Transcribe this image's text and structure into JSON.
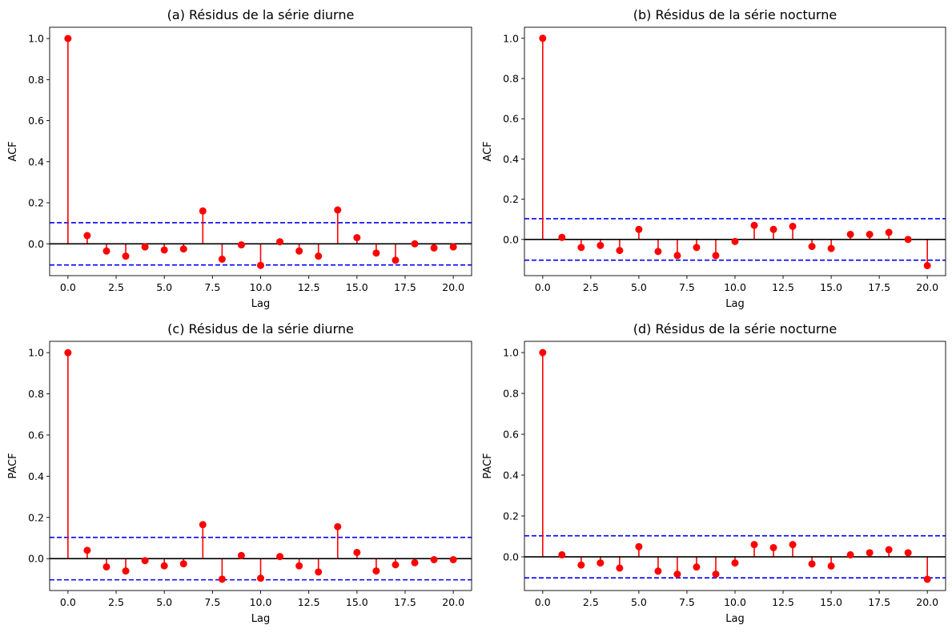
{
  "chart_data": [
    {
      "type": "stem",
      "title": "(a) Résidus de la série diurne",
      "xlabel": "Lag",
      "ylabel": "ACF",
      "x": [
        0,
        1,
        2,
        3,
        4,
        5,
        6,
        7,
        8,
        9,
        10,
        11,
        12,
        13,
        14,
        15,
        16,
        17,
        18,
        19,
        20
      ],
      "values": [
        1.0,
        0.04,
        -0.035,
        -0.06,
        -0.015,
        -0.03,
        -0.025,
        0.16,
        -0.075,
        -0.005,
        -0.105,
        0.01,
        -0.035,
        -0.06,
        0.165,
        0.03,
        -0.045,
        -0.08,
        0.0,
        -0.02,
        -0.015
      ],
      "confidence_bounds": [
        0.103,
        -0.103
      ],
      "xticks": [
        "0.0",
        "2.5",
        "5.0",
        "7.5",
        "10.0",
        "12.5",
        "15.0",
        "17.5",
        "20.0"
      ],
      "yticks": [
        "0.0",
        "0.2",
        "0.4",
        "0.6",
        "0.8",
        "1.0"
      ],
      "xlim": [
        -0.95,
        20.95
      ],
      "ylim": [
        -0.155,
        1.055
      ],
      "colors": {
        "stem": "#ff0000",
        "bounds": "#0000ff",
        "baseline": "#000000"
      }
    },
    {
      "type": "stem",
      "title": "(b) Résidus de la série nocturne",
      "xlabel": "Lag",
      "ylabel": "ACF",
      "x": [
        0,
        1,
        2,
        3,
        4,
        5,
        6,
        7,
        8,
        9,
        10,
        11,
        12,
        13,
        14,
        15,
        16,
        17,
        18,
        19,
        20
      ],
      "values": [
        1.0,
        0.01,
        -0.04,
        -0.03,
        -0.055,
        0.05,
        -0.06,
        -0.08,
        -0.04,
        -0.08,
        -0.01,
        0.07,
        0.05,
        0.065,
        -0.035,
        -0.045,
        0.025,
        0.025,
        0.035,
        0.0,
        -0.13
      ],
      "confidence_bounds": [
        0.103,
        -0.103
      ],
      "xticks": [
        "0.0",
        "2.5",
        "5.0",
        "7.5",
        "10.0",
        "12.5",
        "15.0",
        "17.5",
        "20.0"
      ],
      "yticks": [
        "0.0",
        "0.2",
        "0.4",
        "0.6",
        "0.8",
        "1.0"
      ],
      "xlim": [
        -0.95,
        20.95
      ],
      "ylim": [
        -0.18,
        1.055
      ],
      "colors": {
        "stem": "#ff0000",
        "bounds": "#0000ff",
        "baseline": "#000000"
      }
    },
    {
      "type": "stem",
      "title": "(c) Résidus de la série diurne",
      "xlabel": "Lag",
      "ylabel": "PACF",
      "x": [
        0,
        1,
        2,
        3,
        4,
        5,
        6,
        7,
        8,
        9,
        10,
        11,
        12,
        13,
        14,
        15,
        16,
        17,
        18,
        19,
        20
      ],
      "values": [
        1.0,
        0.04,
        -0.04,
        -0.06,
        -0.01,
        -0.035,
        -0.025,
        0.165,
        -0.1,
        0.015,
        -0.095,
        0.01,
        -0.035,
        -0.065,
        0.155,
        0.03,
        -0.06,
        -0.03,
        -0.02,
        -0.005,
        -0.005
      ],
      "confidence_bounds": [
        0.103,
        -0.103
      ],
      "xticks": [
        "0.0",
        "2.5",
        "5.0",
        "7.5",
        "10.0",
        "12.5",
        "15.0",
        "17.5",
        "20.0"
      ],
      "yticks": [
        "0.0",
        "0.2",
        "0.4",
        "0.6",
        "0.8",
        "1.0"
      ],
      "xlim": [
        -0.95,
        20.95
      ],
      "ylim": [
        -0.155,
        1.055
      ],
      "colors": {
        "stem": "#ff0000",
        "bounds": "#0000ff",
        "baseline": "#000000"
      }
    },
    {
      "type": "stem",
      "title": "(d) Résidus de la série nocturne",
      "xlabel": "Lag",
      "ylabel": "PACF",
      "x": [
        0,
        1,
        2,
        3,
        4,
        5,
        6,
        7,
        8,
        9,
        10,
        11,
        12,
        13,
        14,
        15,
        16,
        17,
        18,
        19,
        20
      ],
      "values": [
        1.0,
        0.01,
        -0.04,
        -0.03,
        -0.055,
        0.05,
        -0.07,
        -0.085,
        -0.05,
        -0.085,
        -0.03,
        0.06,
        0.045,
        0.06,
        -0.035,
        -0.045,
        0.01,
        0.02,
        0.035,
        0.02,
        -0.11
      ],
      "confidence_bounds": [
        0.103,
        -0.103
      ],
      "xticks": [
        "0.0",
        "2.5",
        "5.0",
        "7.5",
        "10.0",
        "12.5",
        "15.0",
        "17.5",
        "20.0"
      ],
      "yticks": [
        "0.0",
        "0.2",
        "0.4",
        "0.6",
        "0.8",
        "1.0"
      ],
      "xlim": [
        -0.95,
        20.95
      ],
      "ylim": [
        -0.165,
        1.055
      ],
      "colors": {
        "stem": "#ff0000",
        "bounds": "#0000ff",
        "baseline": "#000000"
      }
    }
  ]
}
